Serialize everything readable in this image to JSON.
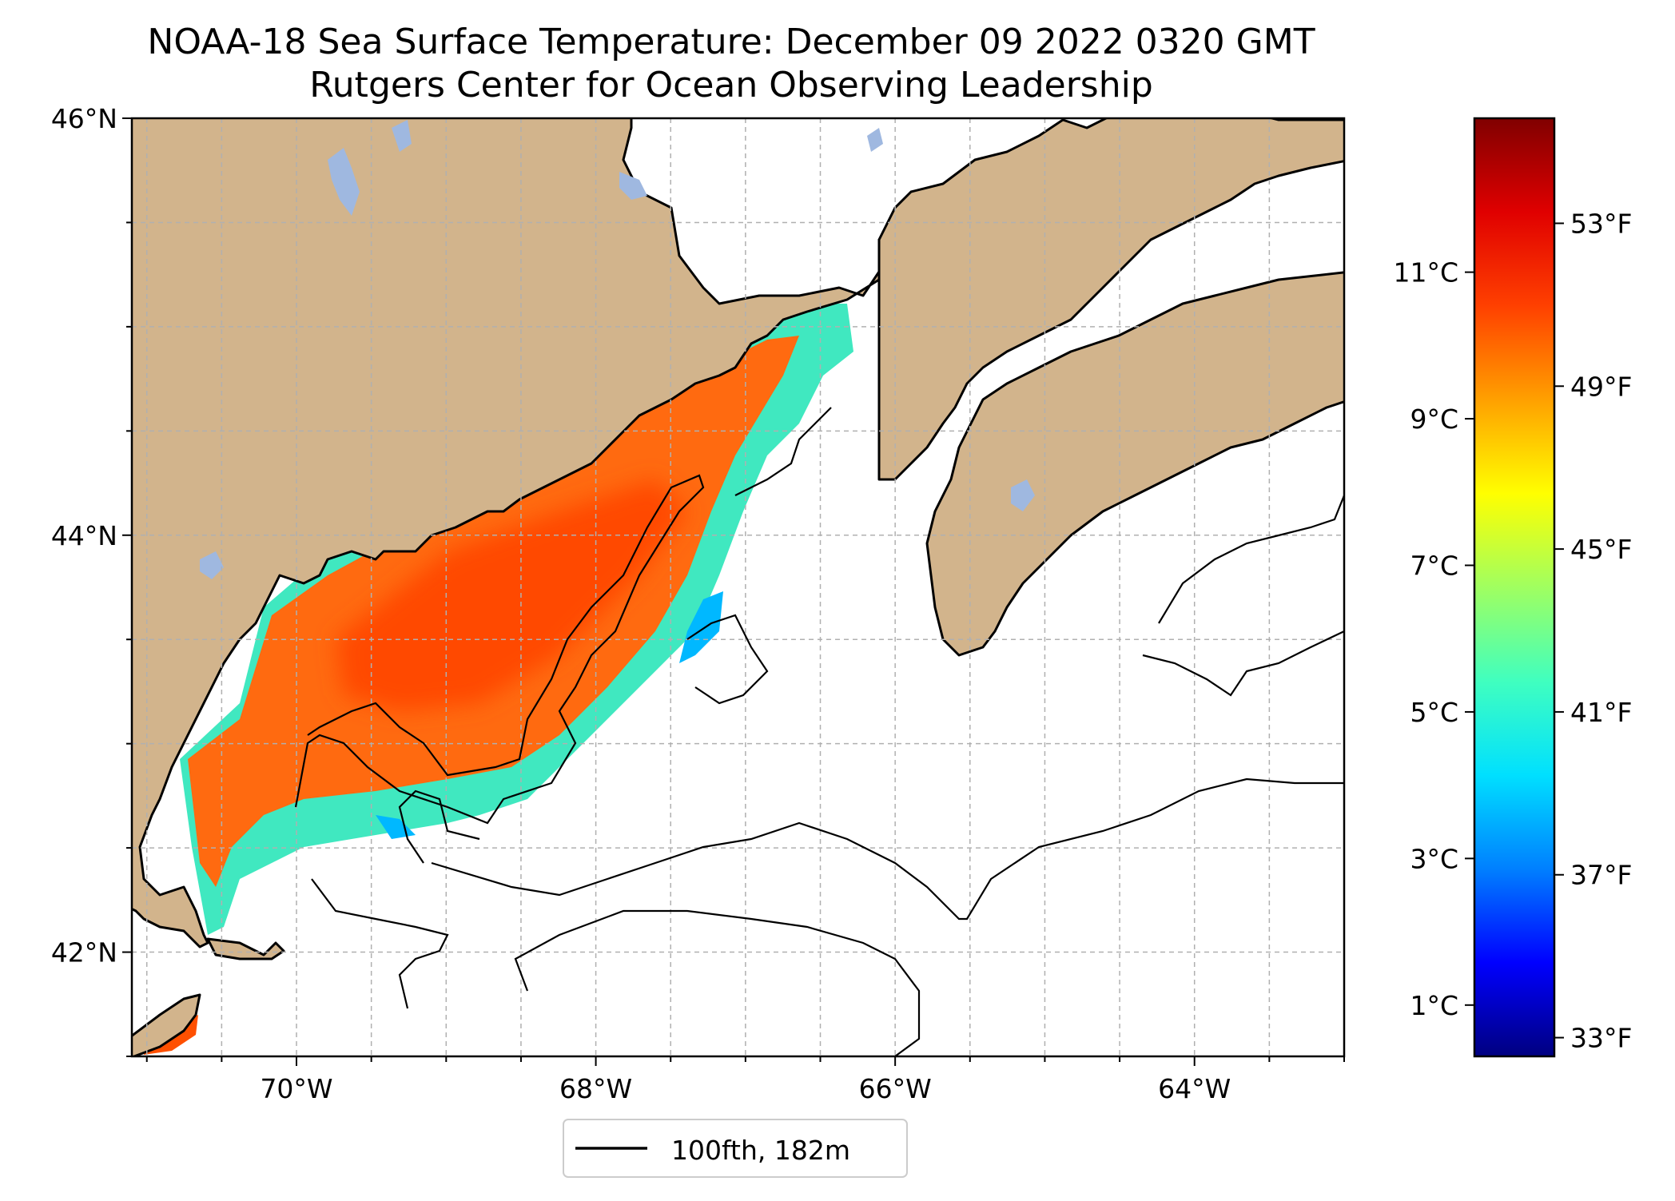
{
  "figure": {
    "title_line1": "NOAA-18 Sea Surface Temperature: December 09 2022 0320 GMT",
    "title_line2": "Rutgers Center for Ocean Observing Leadership"
  },
  "map": {
    "lon_range": [
      -71.1,
      -63.0
    ],
    "lat_range": [
      41.5,
      46.0
    ],
    "lon_ticks": [
      {
        "value": -70,
        "label": "70°W"
      },
      {
        "value": -68,
        "label": "68°W"
      },
      {
        "value": -66,
        "label": "66°W"
      },
      {
        "value": -64,
        "label": "64°W"
      }
    ],
    "lat_ticks": [
      {
        "value": 46,
        "label": "46°N"
      },
      {
        "value": 44,
        "label": "44°N"
      },
      {
        "value": 42,
        "label": "42°N"
      }
    ],
    "colors": {
      "land": "#d2b48c",
      "lakes": "#9fb8e0",
      "ocean": "#ffffff",
      "grid": "#b0b0b0"
    }
  },
  "legend": {
    "label": "100fth, 182m"
  },
  "colorbar": {
    "celsius_range": [
      0.3,
      13.1
    ],
    "celsius_ticks": [
      {
        "value": 11,
        "label": "11°C"
      },
      {
        "value": 9,
        "label": "9°C"
      },
      {
        "value": 7,
        "label": "7°C"
      },
      {
        "value": 5,
        "label": "5°C"
      },
      {
        "value": 3,
        "label": "3°C"
      },
      {
        "value": 1,
        "label": "1°C"
      }
    ],
    "fahrenheit_ticks": [
      {
        "value": 53,
        "label": "53°F"
      },
      {
        "value": 49,
        "label": "49°F"
      },
      {
        "value": 45,
        "label": "45°F"
      },
      {
        "value": 41,
        "label": "41°F"
      },
      {
        "value": 37,
        "label": "37°F"
      },
      {
        "value": 33,
        "label": "33°F"
      }
    ],
    "colormap": [
      "#000080",
      "#0000ff",
      "#0080ff",
      "#00e0ff",
      "#40ffbf",
      "#a0ff60",
      "#ffff00",
      "#ffa000",
      "#ff4000",
      "#e00000",
      "#800000"
    ]
  }
}
